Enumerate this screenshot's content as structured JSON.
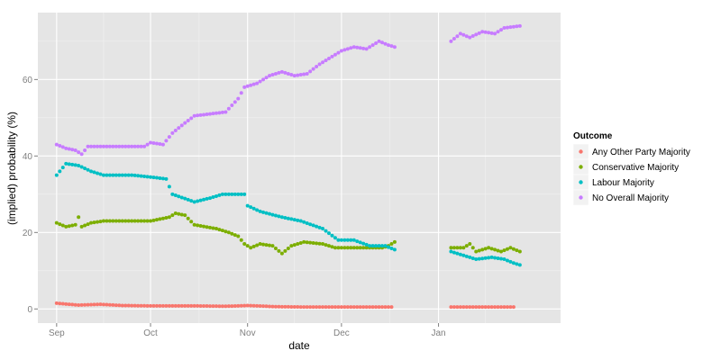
{
  "chart_data": {
    "type": "scatter",
    "xlabel": "date",
    "ylabel": "(implied) probability (%)",
    "x_ticks": [
      {
        "date": "2014-09-01",
        "label": "Sep"
      },
      {
        "date": "2014-10-01",
        "label": "Oct"
      },
      {
        "date": "2014-11-01",
        "label": "Nov"
      },
      {
        "date": "2014-12-01",
        "label": "Dec"
      },
      {
        "date": "2015-01-01",
        "label": "Jan"
      }
    ],
    "xlim": [
      "2014-08-26",
      "2015-02-09"
    ],
    "y_ticks": [
      0,
      20,
      40,
      60
    ],
    "ylim": [
      -3.7,
      77.5
    ],
    "grid": true,
    "legend": {
      "title": "Outcome",
      "position": "right"
    },
    "series": [
      {
        "name": "Any Other Party Majority",
        "color": "#F8766D",
        "segments": [
          {
            "points": [
              [
                "2014-09-01",
                1.5
              ],
              [
                "2014-09-08",
                1.0
              ],
              [
                "2014-09-15",
                1.2
              ],
              [
                "2014-09-22",
                0.9
              ],
              [
                "2014-10-01",
                0.8
              ],
              [
                "2014-10-15",
                0.8
              ],
              [
                "2014-10-25",
                0.7
              ],
              [
                "2014-11-01",
                0.9
              ],
              [
                "2014-11-10",
                0.6
              ],
              [
                "2014-11-20",
                0.5
              ],
              [
                "2014-12-01",
                0.5
              ],
              [
                "2014-12-17",
                0.5
              ]
            ]
          },
          {
            "points": [
              [
                "2015-01-05",
                0.5
              ],
              [
                "2015-01-15",
                0.5
              ],
              [
                "2015-01-25",
                0.5
              ]
            ]
          }
        ]
      },
      {
        "name": "Conservative Majority",
        "color": "#7CAE00",
        "segments": [
          {
            "points": [
              [
                "2014-09-01",
                22.5
              ],
              [
                "2014-09-04",
                21.5
              ],
              [
                "2014-09-07",
                22.0
              ],
              [
                "2014-09-08",
                24.0
              ],
              [
                "2014-09-09",
                21.5
              ],
              [
                "2014-09-12",
                22.5
              ],
              [
                "2014-09-16",
                23.0
              ],
              [
                "2014-09-25",
                23.0
              ],
              [
                "2014-10-01",
                23.0
              ],
              [
                "2014-10-07",
                24.0
              ],
              [
                "2014-10-09",
                25.0
              ],
              [
                "2014-10-12",
                24.5
              ],
              [
                "2014-10-15",
                22.0
              ],
              [
                "2014-10-22",
                21.0
              ],
              [
                "2014-10-26",
                20.0
              ],
              [
                "2014-10-29",
                19.0
              ],
              [
                "2014-10-31",
                17.0
              ],
              [
                "2014-11-02",
                16.0
              ],
              [
                "2014-11-05",
                17.0
              ],
              [
                "2014-11-09",
                16.5
              ],
              [
                "2014-11-12",
                14.5
              ],
              [
                "2014-11-15",
                16.5
              ],
              [
                "2014-11-19",
                17.5
              ],
              [
                "2014-11-25",
                17.0
              ],
              [
                "2014-11-29",
                16.0
              ],
              [
                "2014-12-05",
                16.0
              ],
              [
                "2014-12-10",
                16.0
              ],
              [
                "2014-12-14",
                16.0
              ],
              [
                "2014-12-16",
                16.5
              ],
              [
                "2014-12-18",
                17.5
              ]
            ]
          },
          {
            "points": [
              [
                "2015-01-05",
                16.0
              ],
              [
                "2015-01-09",
                16.0
              ],
              [
                "2015-01-11",
                17.0
              ],
              [
                "2015-01-13",
                15.0
              ],
              [
                "2015-01-17",
                16.0
              ],
              [
                "2015-01-21",
                15.0
              ],
              [
                "2015-01-24",
                16.0
              ],
              [
                "2015-01-27",
                15.0
              ]
            ]
          }
        ]
      },
      {
        "name": "Labour Majority",
        "color": "#00BFC4",
        "segments": [
          {
            "points": [
              [
                "2014-09-01",
                35.0
              ],
              [
                "2014-09-02",
                36.0
              ],
              [
                "2014-09-04",
                38.0
              ],
              [
                "2014-09-08",
                37.5
              ],
              [
                "2014-09-12",
                36.0
              ],
              [
                "2014-09-16",
                35.0
              ],
              [
                "2014-09-25",
                35.0
              ],
              [
                "2014-10-01",
                34.5
              ],
              [
                "2014-10-06",
                34.0
              ],
              [
                "2014-10-08",
                30.0
              ],
              [
                "2014-10-15",
                28.0
              ],
              [
                "2014-10-20",
                29.0
              ],
              [
                "2014-10-24",
                30.0
              ],
              [
                "2014-10-31",
                30.0
              ],
              [
                "2014-11-01",
                27.0
              ],
              [
                "2014-11-05",
                25.5
              ],
              [
                "2014-11-12",
                24.0
              ],
              [
                "2014-11-18",
                23.0
              ],
              [
                "2014-11-25",
                21.0
              ],
              [
                "2014-11-30",
                18.0
              ],
              [
                "2014-12-05",
                18.0
              ],
              [
                "2014-12-10",
                16.5
              ],
              [
                "2014-12-15",
                16.5
              ],
              [
                "2014-12-18",
                15.5
              ]
            ]
          },
          {
            "points": [
              [
                "2015-01-05",
                15.0
              ],
              [
                "2015-01-09",
                14.0
              ],
              [
                "2015-01-13",
                13.0
              ],
              [
                "2015-01-18",
                13.5
              ],
              [
                "2015-01-22",
                13.0
              ],
              [
                "2015-01-25",
                12.0
              ],
              [
                "2015-01-27",
                11.5
              ]
            ]
          }
        ]
      },
      {
        "name": "No Overall Majority",
        "color": "#C77CFF",
        "segments": [
          {
            "points": [
              [
                "2014-09-01",
                43.0
              ],
              [
                "2014-09-04",
                42.0
              ],
              [
                "2014-09-07",
                41.5
              ],
              [
                "2014-09-09",
                40.5
              ],
              [
                "2014-09-11",
                42.5
              ],
              [
                "2014-09-20",
                42.5
              ],
              [
                "2014-09-29",
                42.5
              ],
              [
                "2014-10-01",
                43.5
              ],
              [
                "2014-10-05",
                43.0
              ],
              [
                "2014-10-08",
                46.0
              ],
              [
                "2014-10-11",
                48.0
              ],
              [
                "2014-10-15",
                50.5
              ],
              [
                "2014-10-20",
                51.0
              ],
              [
                "2014-10-25",
                51.5
              ],
              [
                "2014-10-29",
                55.0
              ],
              [
                "2014-10-31",
                58.0
              ],
              [
                "2014-11-04",
                59.0
              ],
              [
                "2014-11-08",
                61.0
              ],
              [
                "2014-11-12",
                62.0
              ],
              [
                "2014-11-16",
                61.0
              ],
              [
                "2014-11-20",
                61.5
              ],
              [
                "2014-11-24",
                64.0
              ],
              [
                "2014-11-28",
                66.0
              ],
              [
                "2014-12-01",
                67.5
              ],
              [
                "2014-12-05",
                68.5
              ],
              [
                "2014-12-09",
                68.0
              ],
              [
                "2014-12-13",
                70.0
              ],
              [
                "2014-12-16",
                69.0
              ],
              [
                "2014-12-18",
                68.5
              ]
            ]
          },
          {
            "points": [
              [
                "2015-01-05",
                70.0
              ],
              [
                "2015-01-08",
                72.0
              ],
              [
                "2015-01-11",
                71.0
              ],
              [
                "2015-01-15",
                72.5
              ],
              [
                "2015-01-19",
                72.0
              ],
              [
                "2015-01-22",
                73.5
              ],
              [
                "2015-01-27",
                74.0
              ]
            ]
          }
        ]
      }
    ]
  }
}
